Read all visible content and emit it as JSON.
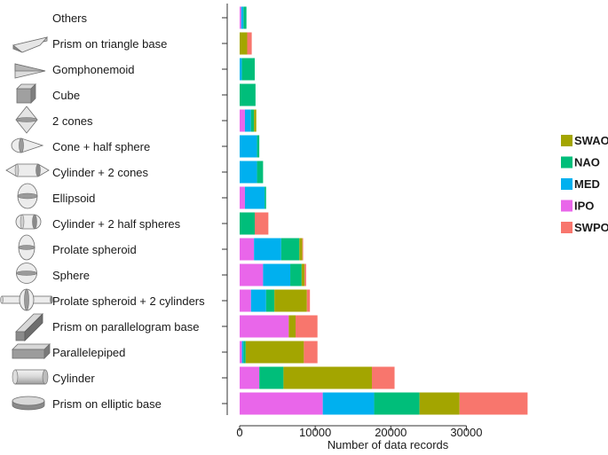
{
  "chart_data": {
    "type": "bar",
    "orientation": "horizontal",
    "stacked": true,
    "xlabel": "Number of data records",
    "xlim": [
      0,
      40000
    ],
    "xticks": [
      0,
      10000,
      20000,
      30000
    ],
    "xtick_labels": [
      "0",
      "10000",
      "20000",
      "30000"
    ],
    "grid": false,
    "legend_position": "right",
    "categories": [
      "Others",
      "Prism on triangle base",
      "Gomphonemoid",
      "Cube",
      "2 cones",
      "Cone + half sphere",
      "Cylinder + 2 cones",
      "Ellipsoid",
      "Cylinder + 2 half spheres",
      "Prolate spheroid",
      "Sphere",
      "Prolate spheroid + 2 cylinders",
      "Prism on parallelogram base",
      "Parallelepiped",
      "Cylinder",
      "Prism on elliptic base"
    ],
    "category_icons": [
      "none",
      "triangular-prism-icon",
      "gomphonemoid-icon",
      "cube-icon",
      "double-cone-icon",
      "cone-half-sphere-icon",
      "cylinder-two-cones-icon",
      "ellipsoid-icon",
      "cylinder-two-half-spheres-icon",
      "prolate-spheroid-icon",
      "sphere-icon",
      "prolate-spheroid-cylinders-icon",
      "parallelogram-prism-icon",
      "parallelepiped-icon",
      "cylinder-icon",
      "elliptic-prism-icon"
    ],
    "stack_order": [
      "IPO",
      "MED",
      "NAO",
      "SWAO",
      "SWPO"
    ],
    "series": [
      {
        "name": "IPO",
        "color": "#e966ea",
        "values": [
          200,
          0,
          0,
          0,
          700,
          0,
          0,
          700,
          0,
          1900,
          3100,
          1500,
          6500,
          300,
          2600,
          11000
        ]
      },
      {
        "name": "MED",
        "color": "#00b0ef",
        "values": [
          300,
          0,
          300,
          0,
          800,
          2300,
          2300,
          2600,
          0,
          3600,
          3600,
          2000,
          0,
          200,
          0,
          6800
        ]
      },
      {
        "name": "NAO",
        "color": "#00be7a",
        "values": [
          400,
          0,
          1700,
          2100,
          400,
          300,
          800,
          200,
          2000,
          2400,
          1500,
          1100,
          0,
          300,
          3200,
          6000
        ]
      },
      {
        "name": "SWAO",
        "color": "#a3a500",
        "values": [
          0,
          1000,
          0,
          0,
          300,
          0,
          0,
          0,
          0,
          400,
          400,
          4300,
          900,
          7700,
          11700,
          5300
        ]
      },
      {
        "name": "SWPO",
        "color": "#f8766d",
        "values": [
          0,
          600,
          0,
          0,
          0,
          0,
          0,
          0,
          1800,
          100,
          200,
          400,
          2900,
          1800,
          3000,
          9000
        ]
      }
    ],
    "legend_order": [
      "SWAO",
      "NAO",
      "MED",
      "IPO",
      "SWPO"
    ]
  }
}
